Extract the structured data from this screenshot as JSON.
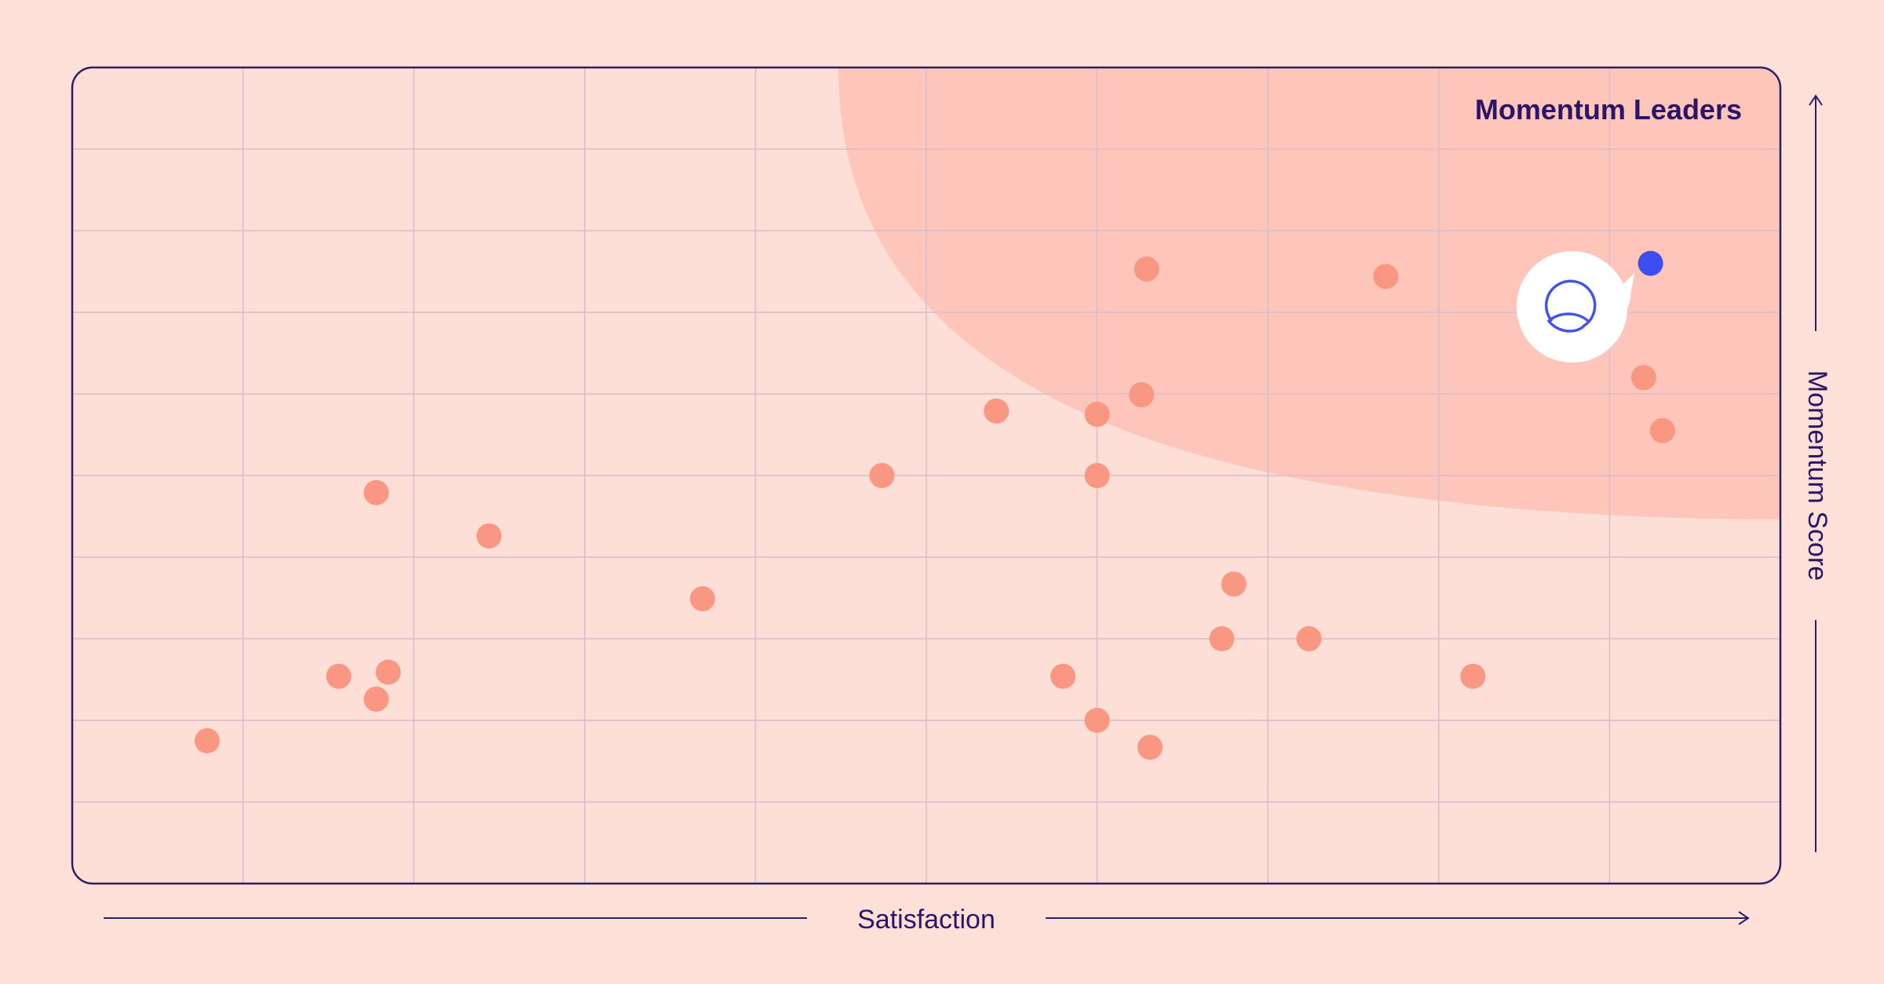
{
  "colors": {
    "background": "#fde0d8",
    "plot_fill": "#fddfd8",
    "leader_zone": "#fec5bb",
    "grid": "#d8bcc9",
    "frame": "#2c1f66",
    "dot": "#fa9782",
    "highlight_dot": "#3d4ef0",
    "text": "#2c1566",
    "logo_bubble": "#ffffff",
    "logo_stroke": "#4355e8"
  },
  "logo_icon": "brand-logo-icon",
  "chart_data": {
    "type": "scatter",
    "title": "",
    "xlabel": "Satisfaction",
    "ylabel": "Momentum Score",
    "xlim": [
      0,
      10
    ],
    "ylim": [
      0,
      10
    ],
    "grid": true,
    "region_label": "Momentum Leaders",
    "points": [
      {
        "x": 0.79,
        "y": 1.75
      },
      {
        "x": 1.56,
        "y": 2.54
      },
      {
        "x": 1.78,
        "y": 2.26
      },
      {
        "x": 1.85,
        "y": 2.59
      },
      {
        "x": 1.78,
        "y": 4.79
      },
      {
        "x": 2.44,
        "y": 4.26
      },
      {
        "x": 3.69,
        "y": 3.49
      },
      {
        "x": 4.74,
        "y": 5.0
      },
      {
        "x": 5.41,
        "y": 5.79
      },
      {
        "x": 5.8,
        "y": 2.54
      },
      {
        "x": 6.0,
        "y": 5.75
      },
      {
        "x": 6.0,
        "y": 5.0
      },
      {
        "x": 6.0,
        "y": 2.0
      },
      {
        "x": 6.26,
        "y": 5.99
      },
      {
        "x": 6.29,
        "y": 7.53
      },
      {
        "x": 6.31,
        "y": 1.67
      },
      {
        "x": 6.73,
        "y": 3.0
      },
      {
        "x": 6.8,
        "y": 3.67
      },
      {
        "x": 7.24,
        "y": 3.0
      },
      {
        "x": 7.69,
        "y": 7.44
      },
      {
        "x": 8.2,
        "y": 2.54
      },
      {
        "x": 9.2,
        "y": 6.2
      },
      {
        "x": 9.31,
        "y": 5.55
      }
    ],
    "highlight_point": {
      "x": 9.24,
      "y": 7.6
    }
  }
}
